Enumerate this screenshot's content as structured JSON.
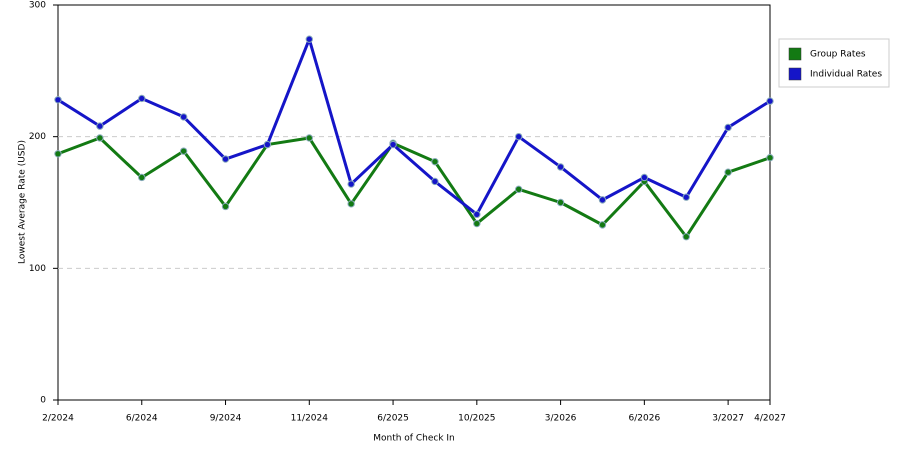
{
  "chart_data": {
    "type": "line",
    "x_label": "Month of Check In",
    "y_label": "Lowest Average Rate (USD)",
    "categories": [
      "2/2024",
      null,
      "6/2024",
      null,
      "9/2024",
      null,
      "11/2024",
      null,
      "6/2025",
      null,
      "10/2025",
      null,
      "3/2026",
      null,
      "6/2026",
      null,
      "3/2027",
      "4/2027"
    ],
    "series": [
      {
        "name": "Group Rates",
        "color": "#137a13",
        "values": [
          187,
          199,
          169,
          189,
          147,
          194,
          199,
          149,
          195,
          181,
          134,
          160,
          150,
          133,
          166,
          124,
          173,
          184
        ]
      },
      {
        "name": "Individual Rates",
        "color": "#1515c8",
        "values": [
          228,
          208,
          229,
          215,
          183,
          194,
          274,
          164,
          194,
          166,
          141,
          200,
          177,
          152,
          169,
          154,
          207,
          227
        ]
      }
    ],
    "ylim": [
      0,
      300
    ],
    "yticks": [
      0,
      100,
      200,
      300
    ],
    "grid": true,
    "legend": "top-right"
  }
}
